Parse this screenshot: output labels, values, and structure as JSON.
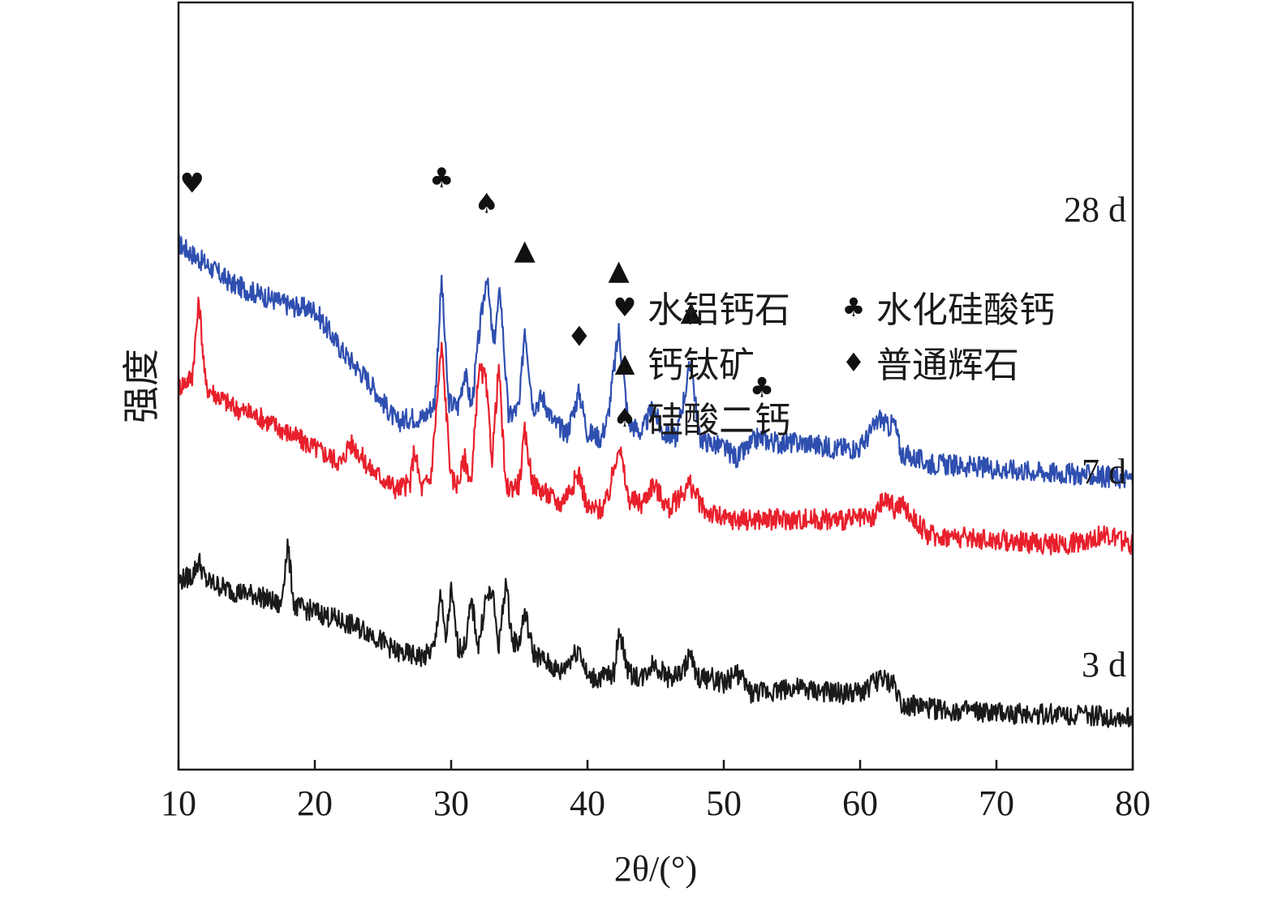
{
  "chart_data": {
    "type": "line",
    "title": "",
    "xlabel": "2θ/(°)",
    "ylabel": "强度",
    "xlim": [
      10,
      80
    ],
    "xticks": [
      "10",
      "20",
      "30",
      "40",
      "50",
      "60",
      "70",
      "80"
    ],
    "grid": false,
    "series": [
      {
        "name": "28 d",
        "color": "#2f4fb0",
        "x": [
          10,
          12,
          14,
          16,
          18,
          20,
          21,
          22,
          24,
          26,
          27,
          28,
          28.8,
          29.3,
          29.8,
          30.5,
          31,
          31.5,
          32,
          32.6,
          33.1,
          33.6,
          34.2,
          35,
          35.4,
          36,
          36.7,
          37.5,
          38.5,
          39.4,
          40,
          41,
          41.5,
          42.3,
          43,
          44,
          44.8,
          45.5,
          46.5,
          47.6,
          48.2,
          49,
          50,
          51,
          52.5,
          54,
          56,
          58,
          60,
          61,
          61.5,
          62,
          62.5,
          63,
          65,
          70,
          75,
          80
        ],
        "y": [
          92,
          88,
          84,
          82,
          80,
          79,
          75,
          71,
          65,
          57,
          58,
          58,
          61,
          85,
          61,
          60,
          67,
          60,
          73,
          86,
          72,
          83,
          58,
          60,
          76,
          60,
          62,
          57,
          55,
          63,
          55,
          54,
          58,
          75,
          57,
          55,
          60,
          55,
          54,
          69,
          54,
          53,
          52,
          50,
          54,
          53,
          53,
          52,
          52,
          56,
          58,
          56,
          57,
          51,
          49,
          48,
          47,
          46
        ]
      },
      {
        "name": "7 d",
        "color": "#e8202c",
        "x": [
          10,
          11,
          11.5,
          12,
          14,
          16,
          18,
          20,
          22,
          22.5,
          23,
          24,
          26,
          27,
          27.3,
          27.8,
          28.5,
          29.3,
          30,
          30.5,
          31,
          31.5,
          32,
          32.5,
          33,
          33.5,
          34,
          35,
          35.4,
          36,
          37,
          38,
          39.4,
          40,
          41,
          41.5,
          42.3,
          43,
          44,
          44.8,
          46,
          47.5,
          48.5,
          50,
          52,
          55,
          58,
          60,
          61,
          61.5,
          62,
          62.5,
          63,
          65,
          70,
          75,
          78,
          80
        ],
        "y": [
          64,
          66,
          81,
          64,
          60,
          58,
          55,
          52,
          49,
          53,
          52,
          48,
          44,
          45,
          52,
          44,
          46,
          72,
          46,
          45,
          50,
          45,
          67,
          66,
          50,
          68,
          44,
          45,
          55,
          45,
          43,
          41,
          47,
          40,
          40,
          42,
          53,
          42,
          41,
          45,
          40,
          45,
          40,
          38,
          38,
          38,
          38,
          38,
          38,
          41,
          42,
          40,
          41,
          35,
          34,
          33,
          35,
          33
        ]
      },
      {
        "name": "3 d",
        "color": "#1a1a1a",
        "x": [
          10,
          11,
          11.5,
          12,
          14,
          16,
          17.5,
          18,
          18.5,
          20,
          22,
          24,
          26,
          28,
          28.8,
          29.2,
          29.6,
          30,
          30.5,
          31,
          31.5,
          32,
          32.5,
          33,
          33.5,
          34,
          34.5,
          35,
          35.4,
          36,
          37,
          38,
          39.4,
          40,
          41,
          42,
          42.3,
          43,
          44,
          44.8,
          46,
          47,
          47.5,
          48,
          49,
          50,
          51,
          52,
          55,
          58,
          60,
          61,
          61.5,
          62,
          62.5,
          63,
          65,
          70,
          75,
          80
        ],
        "y": [
          26,
          27,
          30,
          26,
          24,
          23,
          21,
          33,
          21,
          20,
          18,
          16,
          12,
          11,
          13,
          24,
          14,
          24,
          13,
          13,
          22,
          13,
          22,
          24,
          13,
          26,
          14,
          14,
          20,
          12,
          10,
          8,
          13,
          7,
          7,
          8,
          17,
          8,
          7,
          10,
          7,
          8,
          12,
          7,
          7,
          6,
          8,
          4,
          5,
          4,
          4,
          6,
          7,
          6,
          6,
          2,
          1,
          0,
          0,
          -1
        ]
      }
    ],
    "series_labels": [
      "28 d",
      "7 d",
      "3 d"
    ],
    "annotations": [
      {
        "symbol": "♥",
        "x": 11.0,
        "y": 102
      },
      {
        "symbol": "♣",
        "x": 29.3,
        "y": 103
      },
      {
        "symbol": "♠",
        "x": 32.6,
        "y": 98
      },
      {
        "symbol": "▲",
        "x": 35.4,
        "y": 89
      },
      {
        "symbol": "♦",
        "x": 39.4,
        "y": 72
      },
      {
        "symbol": "▲",
        "x": 42.3,
        "y": 85
      },
      {
        "symbol": "▲",
        "x": 47.6,
        "y": 77
      },
      {
        "symbol": "♣",
        "x": 52.8,
        "y": 62
      }
    ],
    "legend": {
      "position": "center",
      "items": [
        {
          "symbol": "♥",
          "label": "水铝钙石"
        },
        {
          "symbol": "♣",
          "label": "水化硅酸钙"
        },
        {
          "symbol": "▲",
          "label": "钙钛矿"
        },
        {
          "symbol": "♦",
          "label": "普通辉石"
        },
        {
          "symbol": "♠",
          "label": "硅酸二钙"
        }
      ]
    }
  }
}
